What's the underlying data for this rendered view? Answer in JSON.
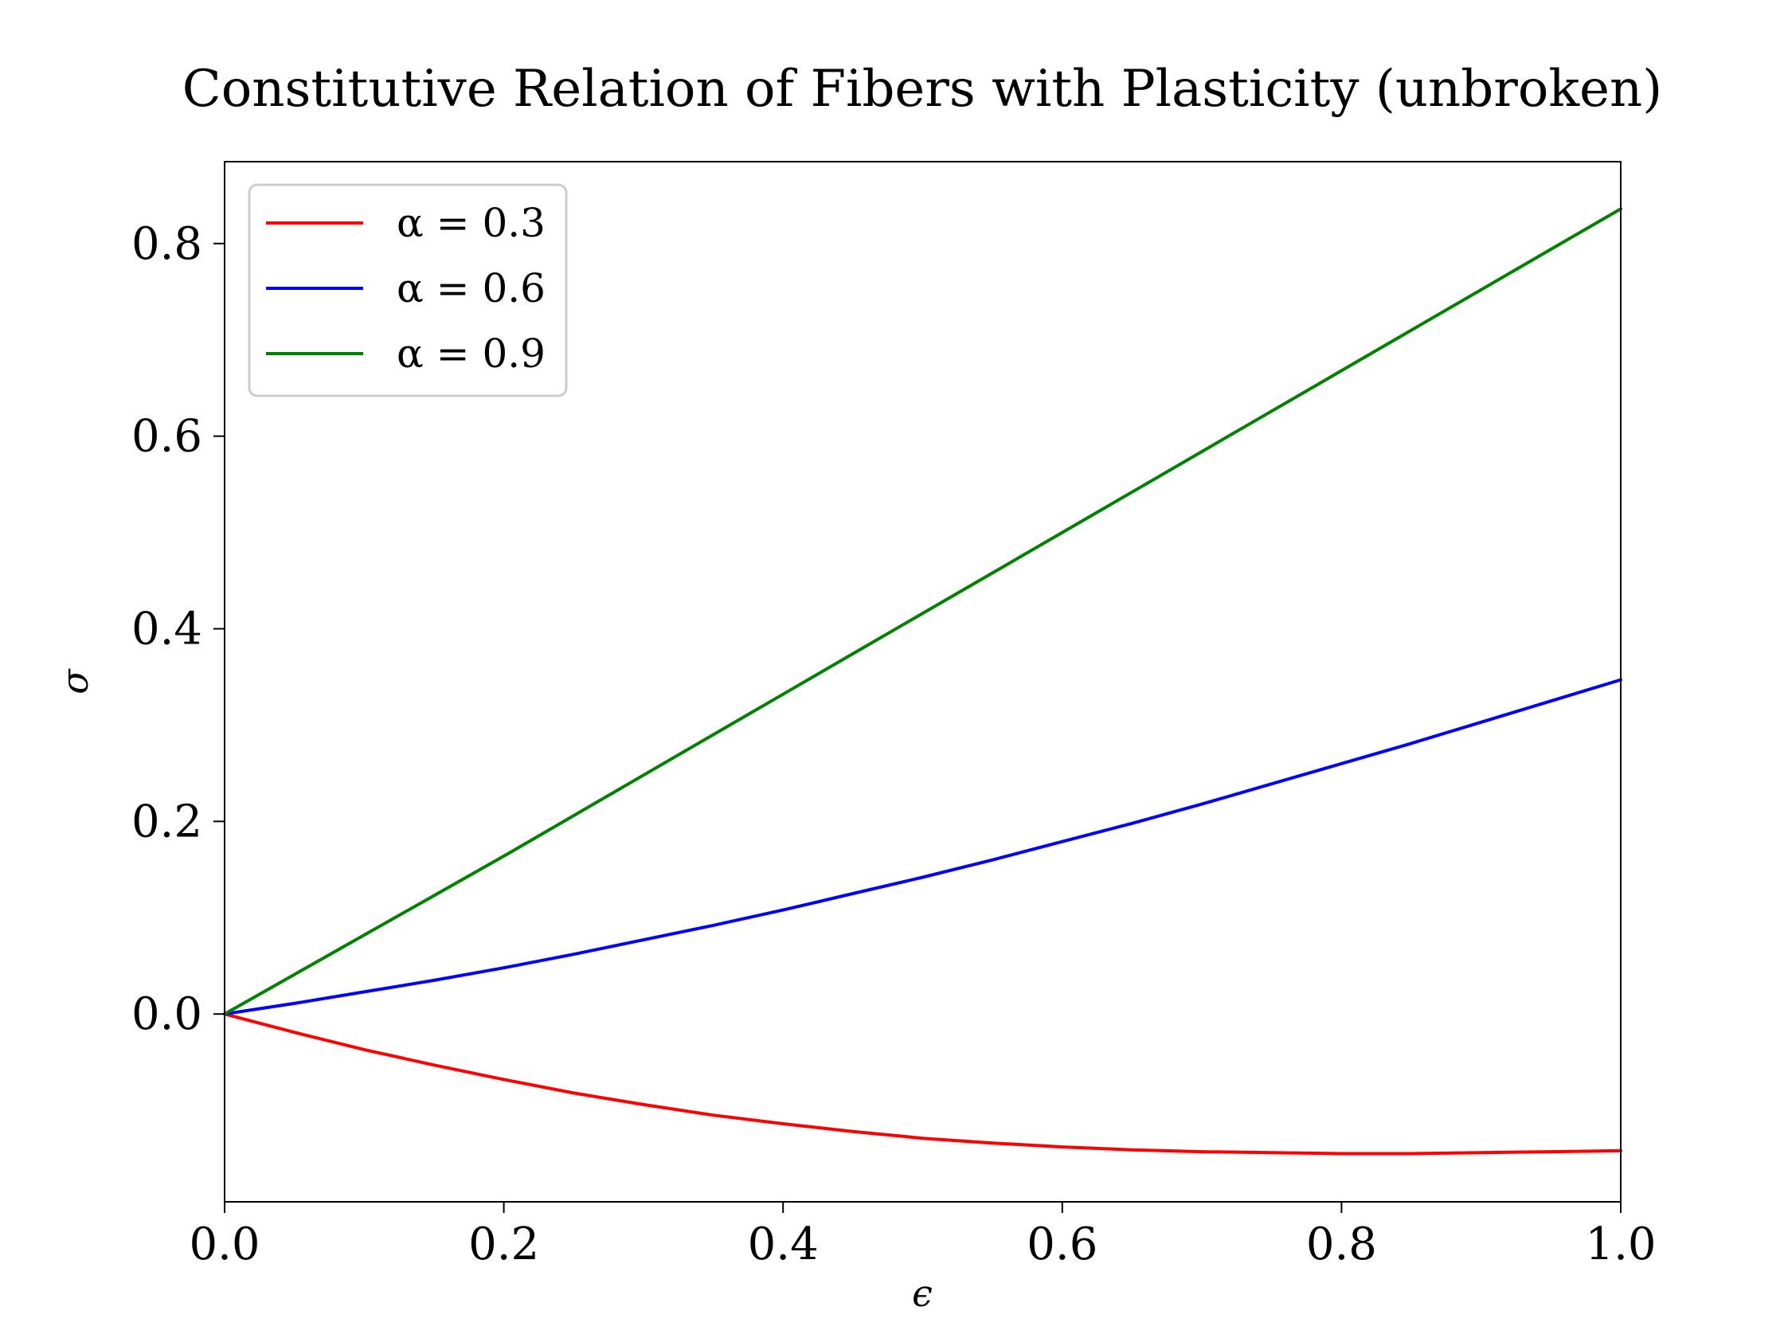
{
  "chart_data": {
    "type": "line",
    "title": "Constitutive Relation of Fibers with Plasticity (unbroken)",
    "xlabel": "ϵ",
    "ylabel": "σ",
    "xlim": [
      0.0,
      1.0
    ],
    "ylim": [
      -0.195,
      0.885
    ],
    "xticks": [
      0.0,
      0.2,
      0.4,
      0.6,
      0.8,
      1.0
    ],
    "xtick_labels": [
      "0.0",
      "0.2",
      "0.4",
      "0.6",
      "0.8",
      "1.0"
    ],
    "yticks": [
      0.0,
      0.2,
      0.4,
      0.6,
      0.8
    ],
    "ytick_labels": [
      "0.0",
      "0.2",
      "0.4",
      "0.6",
      "0.8"
    ],
    "grid": false,
    "legend_position": "upper-left",
    "x": [
      0.0,
      0.05,
      0.1,
      0.15,
      0.2,
      0.25,
      0.3,
      0.35,
      0.4,
      0.45,
      0.5,
      0.55,
      0.6,
      0.65,
      0.7,
      0.75,
      0.8,
      0.85,
      0.9,
      0.95,
      1.0
    ],
    "series": [
      {
        "name": "α = 0.3",
        "color": "#ff0000",
        "values": [
          0.0,
          -0.019,
          -0.037,
          -0.053,
          -0.068,
          -0.082,
          -0.094,
          -0.105,
          -0.114,
          -0.122,
          -0.129,
          -0.134,
          -0.138,
          -0.141,
          -0.143,
          -0.144,
          -0.145,
          -0.145,
          -0.144,
          -0.143,
          -0.142
        ]
      },
      {
        "name": "α = 0.6",
        "color": "#0000ff",
        "values": [
          0.0,
          0.011,
          0.023,
          0.035,
          0.048,
          0.062,
          0.077,
          0.092,
          0.108,
          0.125,
          0.142,
          0.16,
          0.179,
          0.198,
          0.218,
          0.239,
          0.26,
          0.281,
          0.303,
          0.325,
          0.347
        ]
      },
      {
        "name": "α = 0.9",
        "color": "#008000",
        "values": [
          0.0,
          0.041,
          0.082,
          0.123,
          0.164,
          0.206,
          0.248,
          0.29,
          0.332,
          0.374,
          0.416,
          0.458,
          0.5,
          0.542,
          0.584,
          0.626,
          0.668,
          0.71,
          0.752,
          0.794,
          0.836
        ]
      }
    ]
  }
}
